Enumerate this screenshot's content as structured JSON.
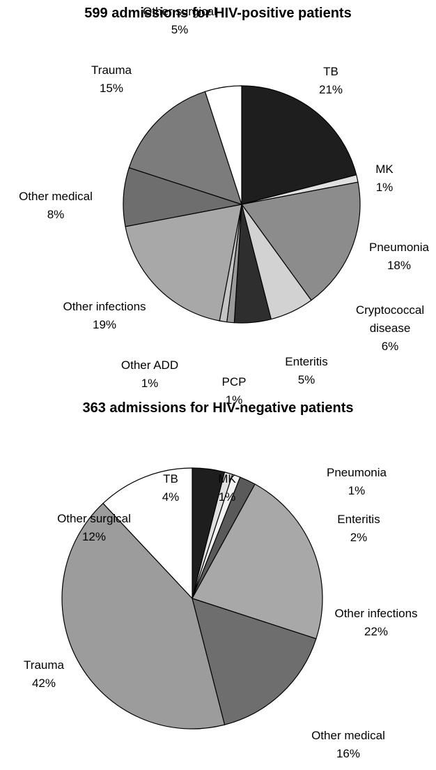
{
  "chart_data": [
    {
      "type": "pie",
      "title": "599 admissions for HIV-positive patients",
      "categories": [
        "TB",
        "MK",
        "Pneumonia",
        "Cryptococcal disease",
        "Enteritis",
        "PCP",
        "Other ADD",
        "Other infections",
        "Other medical",
        "Trauma",
        "Other surgical"
      ],
      "values": [
        21,
        1,
        18,
        6,
        5,
        1,
        1,
        19,
        8,
        15,
        5
      ],
      "value_labels": [
        "21%",
        "1%",
        "18%",
        "6%",
        "5%",
        "1%",
        "1%",
        "19%",
        "8%",
        "15%",
        "5%"
      ],
      "colors": [
        "#1e1e1e",
        "#e0e0e0",
        "#8c8c8c",
        "#d2d2d2",
        "#2e2e2e",
        "#9a9a9a",
        "#c4c4c4",
        "#a8a8a8",
        "#6e6e6e",
        "#7c7c7c",
        "#ffffff"
      ]
    },
    {
      "type": "pie",
      "title": "363 admissions for HIV-negative patients",
      "categories": [
        "TB",
        "MK",
        "Pneumonia",
        "Enteritis",
        "Other infections",
        "Other medical",
        "Trauma",
        "Other surgical"
      ],
      "values": [
        4,
        1,
        1,
        2,
        22,
        16,
        42,
        12
      ],
      "value_labels": [
        "4%",
        "1%",
        "1%",
        "2%",
        "22%",
        "16%",
        "42%",
        "12%"
      ],
      "colors": [
        "#1e1e1e",
        "#e0e0e0",
        "#f2f2f2",
        "#5a5a5a",
        "#a8a8a8",
        "#6e6e6e",
        "#9c9c9c",
        "#ffffff"
      ]
    }
  ]
}
